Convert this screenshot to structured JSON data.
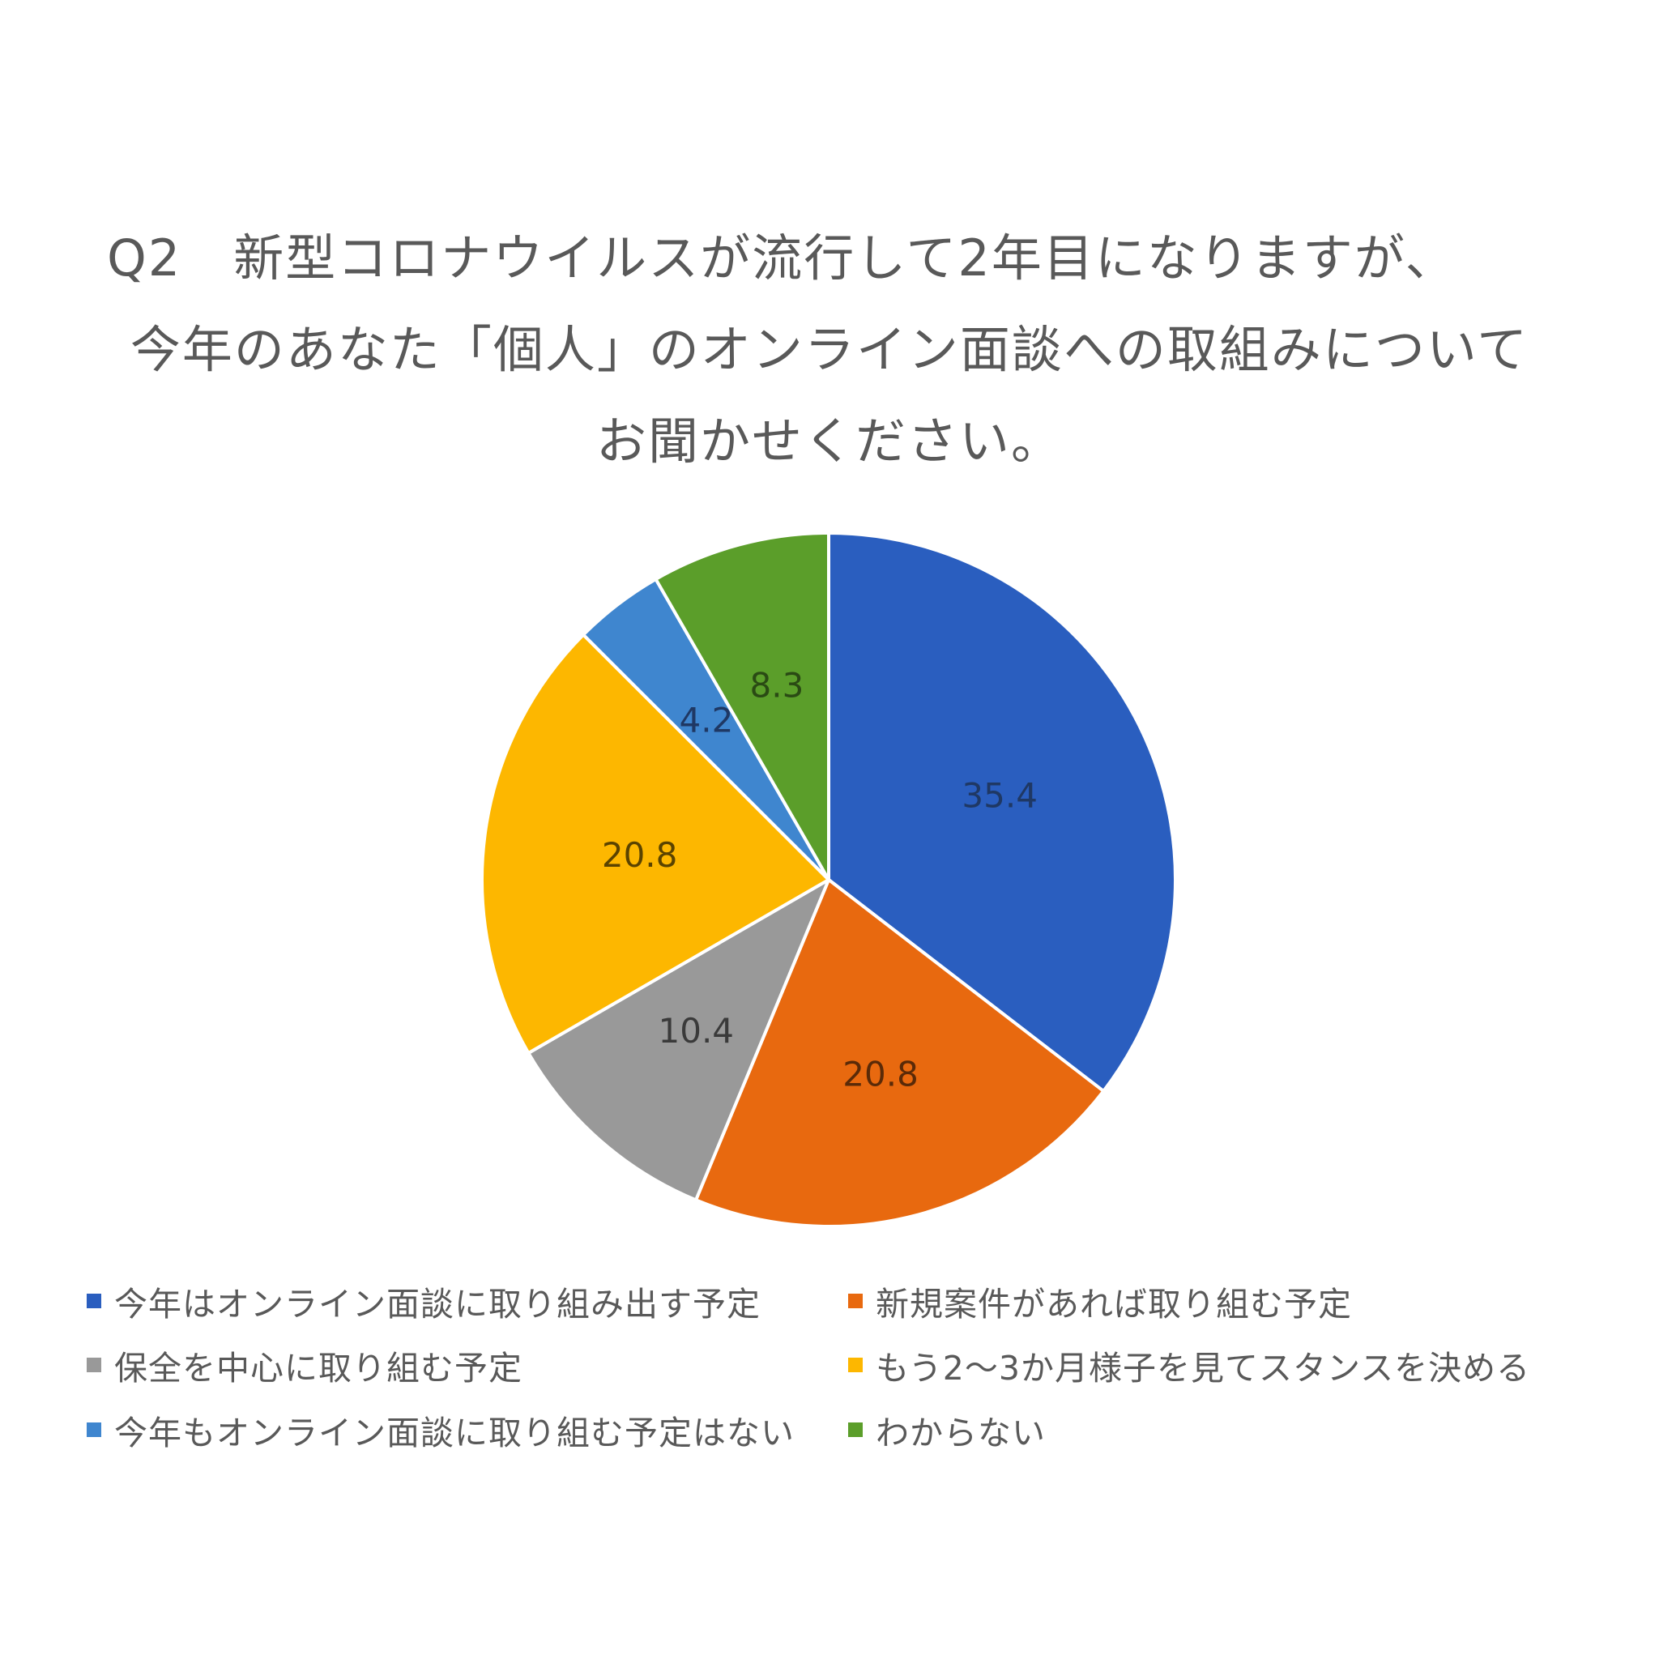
{
  "title": {
    "lines": [
      "Q2　新型コロナウイルスが流行して2年目になりますが、",
      "今年のあなた「個人」のオンライン面談への取組みについて",
      "お聞かせください。"
    ]
  },
  "legend": {
    "items": [
      {
        "label": "今年はオンライン面談に取り組み出す予定",
        "color": "#2a5ebf"
      },
      {
        "label": "新規案件があれば取り組む予定",
        "color": "#e8690f"
      },
      {
        "label": "保全を中心に取り組む予定",
        "color": "#999999"
      },
      {
        "label": "もう2〜3か月様子を見てスタンスを決める",
        "color": "#fdb700"
      },
      {
        "label": "今年もオンライン面談に取り組む予定はない",
        "color": "#3f86cf"
      },
      {
        "label": "わからない",
        "color": "#5b9e2a"
      }
    ]
  },
  "chart_data": {
    "type": "pie",
    "title": "Q2　新型コロナウイルスが流行して2年目になりますが、今年のあなた「個人」のオンライン面談への取組みについてお聞かせください。",
    "categories": [
      "今年はオンライン面談に取り組み出す予定",
      "新規案件があれば取り組む予定",
      "保全を中心に取り組む予定",
      "もう2〜3か月様子を見てスタンスを決める",
      "今年もオンライン面談に取り組む予定はない",
      "わからない"
    ],
    "values": [
      35.4,
      20.8,
      10.4,
      20.8,
      4.2,
      8.3
    ],
    "data_labels": [
      "35.4",
      "20.8",
      "10.4",
      "20.8",
      "4.2",
      "8.3"
    ],
    "colors": [
      "#2a5ebf",
      "#e8690f",
      "#999999",
      "#fdb700",
      "#3f86cf",
      "#5b9e2a"
    ],
    "label_colors": [
      "#1f3864",
      "#5a2a08",
      "#3a3a3a",
      "#5a4300",
      "#1f3864",
      "#2a4a14"
    ],
    "start_angle": "12 o'clock",
    "direction": "clockwise",
    "legend_position": "bottom"
  }
}
